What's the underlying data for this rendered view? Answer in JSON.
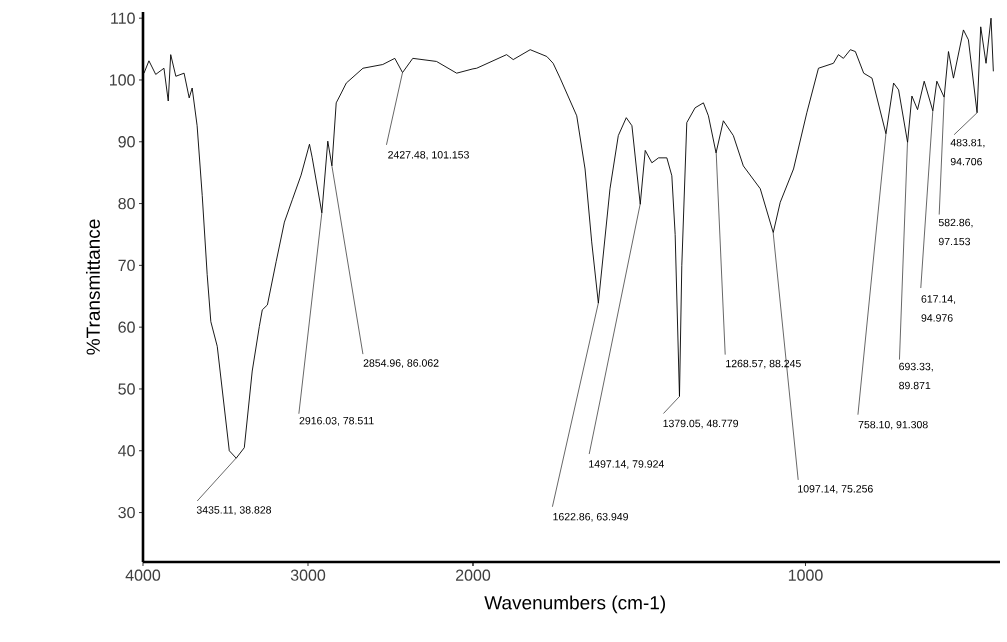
{
  "chart_data": [
    {
      "type": "line",
      "ylabel": "%Transmittance",
      "color": "#000000",
      "x": [
        3994,
        3964,
        3923,
        3873,
        3847,
        3832,
        3801,
        3751,
        3720,
        3702,
        3672,
        3641,
        3611,
        3589,
        3550,
        3477,
        3435,
        3386,
        3338,
        3295,
        3277,
        3246,
        3193,
        3143,
        3094,
        3042,
        2991,
        2975,
        2916,
        2880,
        2855,
        2829,
        2798,
        2768,
        2667,
        2547,
        2474,
        2427,
        2365,
        2221,
        2099,
        2000
      ],
      "values": [
        101.1,
        103.1,
        100.9,
        101.9,
        96.6,
        104.1,
        100.6,
        101.1,
        97.1,
        98.7,
        92.6,
        81.3,
        68.5,
        60.9,
        56.9,
        40.0,
        38.8,
        40.5,
        52.9,
        60.1,
        62.8,
        63.6,
        70.6,
        77.0,
        80.7,
        84.6,
        89.6,
        87.5,
        78.5,
        90.1,
        86.1,
        96.3,
        97.9,
        99.5,
        101.9,
        102.5,
        103.5,
        101.2,
        103.5,
        103.0,
        101.1,
        101.8
      ],
      "xlim": [
        4000,
        2000
      ],
      "ylim": [
        22,
        111
      ],
      "xticks": [
        4000,
        3000,
        {
          "value": 2000,
          "label": null
        }
      ],
      "yticks": [
        30,
        40,
        50,
        60,
        70,
        80,
        90,
        100,
        110
      ],
      "annotations": [
        {
          "text": "3435.11, 38.828",
          "x": 3435.11,
          "y": 38.828
        },
        {
          "text": "2916.03, 78.511",
          "x": 2916.03,
          "y": 78.511
        },
        {
          "text": "2854.96, 86.062",
          "x": 2854.96,
          "y": 86.062
        },
        {
          "text": "2427.48, 101.153",
          "x": 2427.48,
          "y": 101.153
        }
      ]
    },
    {
      "type": "line",
      "xlabel": "Wavenumbers (cm-1)",
      "color": "#000000",
      "tick_labels": "x",
      "x": [
        2000,
        1989,
        1899,
        1879,
        1828,
        1778,
        1759,
        1738,
        1688,
        1663,
        1643,
        1623,
        1588,
        1563,
        1539,
        1522,
        1497,
        1482,
        1462,
        1442,
        1417,
        1402,
        1392,
        1379,
        1372,
        1357,
        1332,
        1307,
        1292,
        1269,
        1247,
        1217,
        1187,
        1136,
        1097,
        1076,
        1036,
        996,
        961,
        916,
        901,
        886,
        865,
        850,
        825,
        800,
        758,
        735,
        720,
        693,
        680,
        663,
        643,
        617,
        605,
        583,
        570,
        555,
        525,
        510,
        484,
        473,
        457,
        442,
        435
      ],
      "values": [
        101.8,
        101.9,
        104.1,
        103.3,
        104.9,
        103.8,
        102.7,
        100.3,
        94.2,
        85.6,
        73.8,
        63.9,
        82.4,
        91.0,
        93.9,
        92.6,
        79.9,
        88.6,
        86.6,
        87.4,
        87.4,
        84.5,
        75,
        48.8,
        70,
        93.1,
        95.5,
        96.3,
        94.2,
        88.2,
        93.4,
        91.0,
        86.1,
        82.4,
        75.3,
        80.2,
        85.6,
        94.7,
        101.9,
        102.7,
        104.1,
        103.5,
        104.9,
        104.6,
        101.1,
        100.3,
        91.3,
        99.5,
        98.4,
        89.9,
        97.4,
        95.2,
        99.8,
        95.0,
        99.8,
        97.2,
        104.6,
        100.3,
        108.1,
        106.5,
        94.7,
        108.6,
        102.7,
        110.0,
        101.4
      ],
      "xlim": [
        2000,
        415
      ],
      "ylim": [
        22,
        110
      ],
      "xticks": [
        2000,
        1000
      ],
      "yticks": [
        30,
        40,
        50,
        60,
        70,
        80,
        90,
        100,
        110
      ],
      "annotations": [
        {
          "text": "1622.86, 63.949",
          "x": 1622.86,
          "y": 63.949
        },
        {
          "text": "1497.14, 79.924",
          "x": 1497.14,
          "y": 79.924
        },
        {
          "text": "1379.05, 48.779",
          "x": 1379.05,
          "y": 48.779
        },
        {
          "text": "1268.57, 88.245",
          "x": 1268.57,
          "y": 88.245
        },
        {
          "text": "1097.14, 75.256",
          "x": 1097.14,
          "y": 75.256
        },
        {
          "text": "758.10, 91.308",
          "x": 758.1,
          "y": 91.308
        },
        {
          "text": "693.33, 89.871",
          "x": 693.33,
          "y": 89.871
        },
        {
          "text": "617.14, 94.976",
          "x": 617.14,
          "y": 94.976
        },
        {
          "text": "582.86, 97.153",
          "x": 582.86,
          "y": 97.153
        },
        {
          "text": "483.81, 94.706",
          "x": 483.81,
          "y": 94.706
        }
      ]
    }
  ]
}
